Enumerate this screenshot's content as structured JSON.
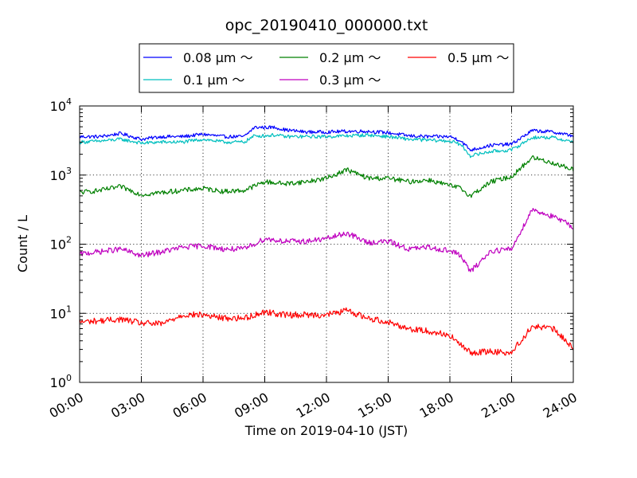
{
  "chart_data": {
    "type": "line",
    "title": "opc_20190410_000000.txt",
    "xlabel": "Time on 2019-04-10 (JST)",
    "ylabel": "Count / L",
    "yscale": "log",
    "ylim": [
      1,
      10000
    ],
    "xlim": [
      "00:00",
      "24:00"
    ],
    "x_unit": "hours",
    "grid": true,
    "legend_position": "top",
    "xticks": [
      "00:00",
      "03:00",
      "06:00",
      "09:00",
      "12:00",
      "15:00",
      "18:00",
      "21:00",
      "24:00"
    ],
    "yticks": [
      {
        "value": 1,
        "base": "10",
        "exp": "0"
      },
      {
        "value": 10,
        "base": "10",
        "exp": "1"
      },
      {
        "value": 100,
        "base": "10",
        "exp": "2"
      },
      {
        "value": 1000,
        "base": "10",
        "exp": "3"
      },
      {
        "value": 10000,
        "base": "10",
        "exp": "4"
      }
    ],
    "legend_layout": [
      [
        0,
        2,
        4
      ],
      [
        1,
        3
      ]
    ],
    "series": [
      {
        "name": "0.08 μm ～",
        "color": "#0000ff",
        "x": [
          0,
          1,
          2,
          3,
          4,
          5,
          6,
          7,
          8,
          8.5,
          9,
          9.5,
          10,
          11,
          12,
          13,
          14,
          15,
          16,
          17,
          18,
          18.5,
          19,
          20,
          21,
          22,
          23,
          24
        ],
        "y": [
          3600,
          3600,
          4000,
          3300,
          3600,
          3600,
          3900,
          3600,
          3600,
          4900,
          4900,
          4900,
          4500,
          4200,
          4200,
          4300,
          4300,
          4100,
          3700,
          3600,
          3600,
          3200,
          2300,
          2700,
          2800,
          4400,
          4200,
          3700
        ]
      },
      {
        "name": "0.1 μm ～",
        "color": "#00bfbf",
        "x": [
          0,
          1,
          2,
          3,
          4,
          5,
          6,
          7,
          8,
          8.5,
          9,
          9.5,
          10,
          11,
          12,
          13,
          14,
          15,
          16,
          17,
          18,
          18.5,
          19,
          20,
          21,
          22,
          23,
          24
        ],
        "y": [
          3000,
          3100,
          3300,
          2900,
          3000,
          3000,
          3300,
          3000,
          3000,
          3700,
          3700,
          3800,
          3600,
          3600,
          3600,
          3700,
          3800,
          3600,
          3300,
          3200,
          3100,
          2800,
          1900,
          2200,
          2300,
          3500,
          3500,
          3000
        ]
      },
      {
        "name": "0.2 μm ～",
        "color": "#008000",
        "x": [
          0,
          1,
          2,
          3,
          4,
          5,
          6,
          7,
          8,
          9,
          10,
          11,
          12,
          13,
          14,
          15,
          16,
          17,
          18,
          18.5,
          19,
          20,
          21,
          22,
          23,
          24
        ],
        "y": [
          560,
          600,
          680,
          520,
          560,
          600,
          640,
          580,
          600,
          800,
          750,
          800,
          900,
          1200,
          900,
          900,
          800,
          850,
          700,
          650,
          500,
          800,
          950,
          1800,
          1500,
          1200
        ]
      },
      {
        "name": "0.3 μm ～",
        "color": "#bf00bf",
        "x": [
          0,
          1,
          2,
          3,
          4,
          5,
          6,
          7,
          8,
          9,
          10,
          11,
          12,
          13,
          14,
          15,
          16,
          17,
          18,
          18.5,
          19,
          20,
          21,
          22,
          23,
          24
        ],
        "y": [
          72,
          78,
          85,
          68,
          78,
          90,
          95,
          85,
          85,
          120,
          110,
          110,
          120,
          145,
          105,
          110,
          85,
          90,
          80,
          70,
          40,
          80,
          85,
          320,
          250,
          180
        ]
      },
      {
        "name": "0.5 μm ～",
        "color": "#ff0000",
        "x": [
          0,
          1,
          2,
          3,
          4,
          5,
          6,
          7,
          8,
          9,
          10,
          11,
          12,
          13,
          14,
          15,
          16,
          17,
          18,
          18.5,
          19,
          20,
          21,
          22,
          23,
          24
        ],
        "y": [
          7.5,
          7.8,
          8.2,
          7.2,
          7,
          9.5,
          9.5,
          8.5,
          8.5,
          10.5,
          9.5,
          9.5,
          9.5,
          11,
          8.5,
          7.5,
          6,
          5.5,
          4.8,
          3.5,
          2.7,
          2.8,
          2.7,
          6.5,
          6,
          3.2
        ]
      }
    ]
  }
}
